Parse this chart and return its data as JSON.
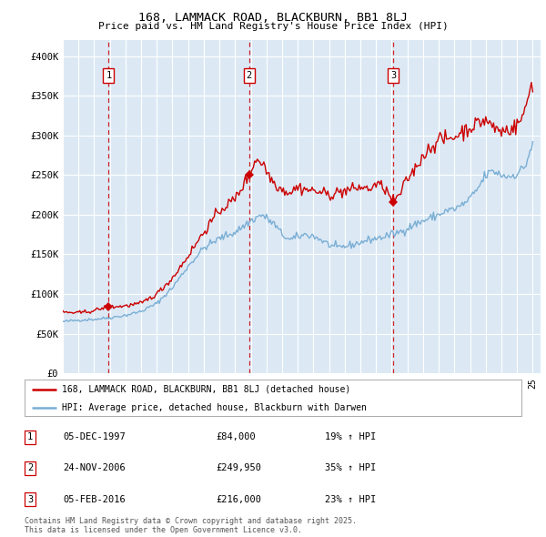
{
  "title1": "168, LAMMACK ROAD, BLACKBURN, BB1 8LJ",
  "title2": "Price paid vs. HM Land Registry's House Price Index (HPI)",
  "ylim": [
    0,
    420000
  ],
  "yticks": [
    0,
    50000,
    100000,
    150000,
    200000,
    250000,
    300000,
    350000,
    400000
  ],
  "ytick_labels": [
    "£0",
    "£50K",
    "£100K",
    "£150K",
    "£200K",
    "£250K",
    "£300K",
    "£350K",
    "£400K"
  ],
  "bg_color": "#dce9f5",
  "grid_color": "#ffffff",
  "sale_color": "#cc0000",
  "hpi_color": "#7aaed4",
  "sale_label": "168, LAMMACK ROAD, BLACKBURN, BB1 8LJ (detached house)",
  "hpi_label": "HPI: Average price, detached house, Blackburn with Darwen",
  "transactions": [
    {
      "date": "1997-12-05",
      "price": 84000,
      "label": "1"
    },
    {
      "date": "2006-11-24",
      "price": 249950,
      "label": "2"
    },
    {
      "date": "2016-02-05",
      "price": 216000,
      "label": "3"
    }
  ],
  "footer1": "Contains HM Land Registry data © Crown copyright and database right 2025.",
  "footer2": "This data is licensed under the Open Government Licence v3.0.",
  "table_rows": [
    [
      "1",
      "05-DEC-1997",
      "£84,000",
      "19% ↑ HPI"
    ],
    [
      "2",
      "24-NOV-2006",
      "£249,950",
      "35% ↑ HPI"
    ],
    [
      "3",
      "05-FEB-2016",
      "£216,000",
      "23% ↑ HPI"
    ]
  ],
  "hpi_anchors": {
    "1995.0": 65000,
    "1996.0": 67000,
    "1997.0": 68000,
    "1998.0": 70000,
    "1999.0": 73000,
    "2000.0": 78000,
    "2001.0": 88000,
    "2002.0": 108000,
    "2003.0": 135000,
    "2004.0": 158000,
    "2005.0": 170000,
    "2006.0": 178000,
    "2007.0": 192000,
    "2007.7": 200000,
    "2008.5": 188000,
    "2009.0": 175000,
    "2009.5": 168000,
    "2010.0": 172000,
    "2010.5": 175000,
    "2011.0": 173000,
    "2011.5": 168000,
    "2012.0": 162000,
    "2012.5": 158000,
    "2013.0": 160000,
    "2013.5": 162000,
    "2014.0": 165000,
    "2014.5": 168000,
    "2015.0": 170000,
    "2015.5": 172000,
    "2016.0": 175000,
    "2016.5": 178000,
    "2017.0": 183000,
    "2017.5": 188000,
    "2018.0": 192000,
    "2018.5": 196000,
    "2019.0": 200000,
    "2019.5": 205000,
    "2020.0": 207000,
    "2020.5": 212000,
    "2021.0": 220000,
    "2021.5": 233000,
    "2022.0": 250000,
    "2022.5": 255000,
    "2023.0": 250000,
    "2023.5": 248000,
    "2024.0": 252000,
    "2024.5": 260000,
    "2025.0": 290000
  },
  "prop_anchors": {
    "1995.0": 77000,
    "1996.0": 76000,
    "1997.0": 79000,
    "1997.9": 84000,
    "1998.5": 84000,
    "1999.0": 85000,
    "2000.0": 88000,
    "2001.0": 100000,
    "2002.0": 120000,
    "2003.0": 148000,
    "2004.0": 178000,
    "2005.0": 205000,
    "2006.0": 220000,
    "2006.9": 249950,
    "2007.3": 270000,
    "2007.8": 265000,
    "2008.0": 255000,
    "2008.5": 240000,
    "2009.0": 232000,
    "2009.5": 228000,
    "2010.0": 235000,
    "2010.5": 232000,
    "2011.0": 230000,
    "2011.5": 228000,
    "2012.0": 225000,
    "2012.5": 228000,
    "2013.0": 230000,
    "2013.5": 232000,
    "2014.0": 235000,
    "2014.5": 232000,
    "2015.0": 238000,
    "2015.5": 235000,
    "2016.1": 216000,
    "2016.5": 225000,
    "2017.0": 245000,
    "2017.5": 258000,
    "2018.0": 275000,
    "2018.5": 285000,
    "2019.0": 295000,
    "2019.5": 295000,
    "2020.0": 298000,
    "2020.5": 305000,
    "2021.0": 310000,
    "2021.5": 315000,
    "2022.0": 320000,
    "2022.5": 310000,
    "2023.0": 305000,
    "2023.5": 308000,
    "2024.0": 312000,
    "2024.5": 330000,
    "2024.9": 365000
  }
}
